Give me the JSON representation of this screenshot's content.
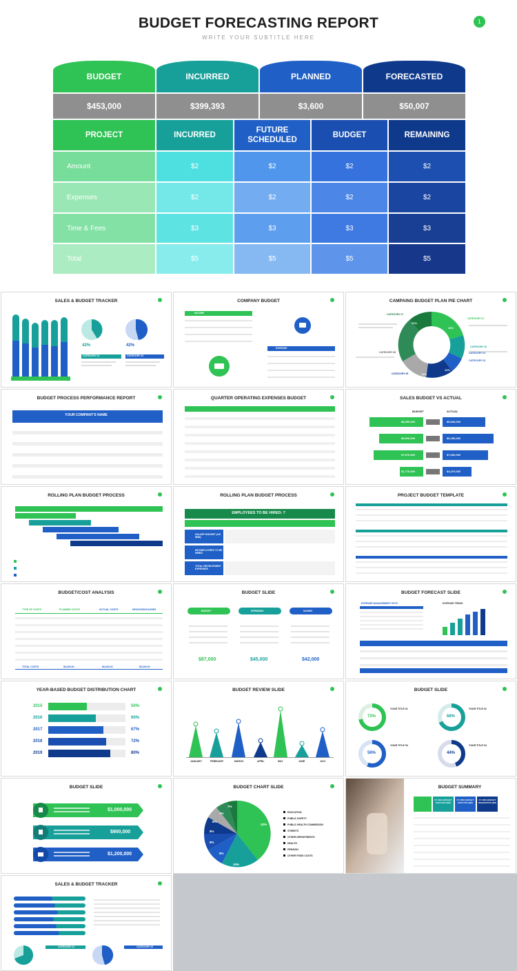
{
  "header": {
    "title": "BUDGET FORECASTING REPORT",
    "subtitle": "WRITE YOUR SUBTITLE HERE",
    "page_number": "1"
  },
  "summary": [
    {
      "label": "BUDGET",
      "value": "$453,000"
    },
    {
      "label": "INCURRED",
      "value": "$399,393"
    },
    {
      "label": "PLANNED",
      "value": "$3,600"
    },
    {
      "label": "FORECASTED",
      "value": "$50,007"
    }
  ],
  "grid": {
    "columns": [
      "PROJECT",
      "INCURRED",
      "FUTURE SCHEDULED",
      "BUDGET",
      "REMAINING"
    ],
    "rows": [
      {
        "label": "Amount",
        "values": [
          "$2",
          "$2",
          "$2",
          "$2"
        ]
      },
      {
        "label": "Expenses",
        "values": [
          "$2",
          "$2",
          "$2",
          "$2"
        ]
      },
      {
        "label": "Time & Fees",
        "values": [
          "$3",
          "$3",
          "$3",
          "$3"
        ]
      },
      {
        "label": "Total",
        "values": [
          "$5",
          "$5",
          "$5",
          "$5"
        ]
      }
    ]
  },
  "colors": {
    "green": "#2fc254",
    "teal": "#17a09a",
    "blue": "#1f5fc6",
    "navy": "#0f3a8c",
    "gray": "#8f8f8f"
  },
  "slides": [
    {
      "title": "SALES & BUDGET TRACKER",
      "labels": [
        "42%",
        "42%",
        "CATEGORY 01",
        "CATEGORY 02"
      ]
    },
    {
      "title": "COMPANY BUDGET",
      "labels": [
        "INCOME",
        "EXPENSE"
      ]
    },
    {
      "title": "CAMPAING BUDGET PLAN PIE CHART",
      "labels": [
        "CATEGORY 01",
        "CATEGORY 02",
        "CATEGORY 03",
        "CATEGORY 04",
        "CATEGORY 05",
        "CATEGORY 06",
        "CATEGORY 07",
        "21%",
        "16%",
        "14%",
        "12%"
      ]
    },
    {
      "title": "BUDGET PROCESS  PERFORMANCE REPORT",
      "labels": [
        "YOUR COMPANY'S NAME"
      ]
    },
    {
      "title": "QUARTER OPERATING EXPENSES BUDGET",
      "labels": []
    },
    {
      "title": "SALES BUDGET VS ACTUAL",
      "labels": [
        "BUDGET",
        "ACTUAL",
        "$8,350,000",
        "$5,600,000",
        "$7,670,000",
        "$1,770,000",
        "$5,340,000",
        "$6,250,000",
        "$7,000,000",
        "$4,470,000"
      ]
    },
    {
      "title": "ROLLING PLAN BUDGET PROCESS",
      "labels": []
    },
    {
      "title": "ROLLING PLAN BUDGET PROCESS",
      "labels": [
        "EMPLOYEES TO BE HIRED: 7",
        "SALARY BUDGET (US $MN)",
        "NR EMPLOYEES TO BE HIRED",
        "TOTAL RECRUITMENT EXPENSES"
      ]
    },
    {
      "title": "PROJECT BUDGET TEMPLATE",
      "labels": []
    },
    {
      "title": "BUDGET/COST ANALYSIS",
      "labels": [
        "TYPE OF COSTS",
        "PLANNED COSTS",
        "ACTUAL COSTS",
        "DEVIATION/CAUSES",
        "TOTAL COSTS",
        "$6,000.00",
        "$6,000.00",
        "$6,000.00"
      ]
    },
    {
      "title": "BUDGET SLIDE",
      "labels": [
        "BUDGET",
        "SPENDING",
        "SAVING",
        "$87,000",
        "$45,000",
        "$42,000"
      ]
    },
    {
      "title": "BUDGET FORECAST SLIDE",
      "labels": [
        "EXPENSE MANAGEMENT KPI'S",
        "EXPENSE TREND"
      ]
    },
    {
      "title": "YEAR-BASED BUDGET DISTRIBUTION CHART",
      "labels": [
        "2015",
        "2016",
        "2017",
        "2018",
        "2019",
        "50%",
        "60%",
        "67%",
        "72%",
        "80%"
      ]
    },
    {
      "title": "BUDGET REVIEW SLIDE",
      "labels": [
        "JANUARY",
        "FEBRUARY",
        "MARCH",
        "APRIL",
        "MAY",
        "JUNE",
        "JULY"
      ]
    },
    {
      "title": "BUDGET SLIDE",
      "labels": [
        "72%",
        "68%",
        "56%",
        "44%",
        "YOUR TITLE 01",
        "YOUR TITLE 02",
        "YOUR TITLE 03",
        "YOUR TITLE 04"
      ]
    },
    {
      "title": "BUDGET SLIDE",
      "labels": [
        "$1,000,000",
        "$900,000",
        "$1,200,000"
      ]
    },
    {
      "title": "BUDGET CHART SLIDE",
      "labels": [
        "EDUCATION",
        "PUBLIC SAFETY",
        "PUBLIC HEALTH COMMISSION",
        "STREETS",
        "OTHER DEPARTMENTS",
        "HEALTH",
        "PENSION",
        "OTHER FIXED COSTS",
        "43%",
        "19%",
        "8%",
        "8%",
        "8%",
        "8%",
        "7%",
        "7%"
      ]
    },
    {
      "title": "BUDGET SUMMARY",
      "labels": [
        "FY 2019 BUDGET ENACTED ($M)",
        "FY 2020 BUDGET ENACTED ($M)",
        "FY 2020 BUDGET REQUESTED ($M)"
      ]
    },
    {
      "title": "SALES & BUDGET TRACKER",
      "labels": [
        "CATEGORY 01",
        "CATEGORY 02"
      ]
    }
  ]
}
